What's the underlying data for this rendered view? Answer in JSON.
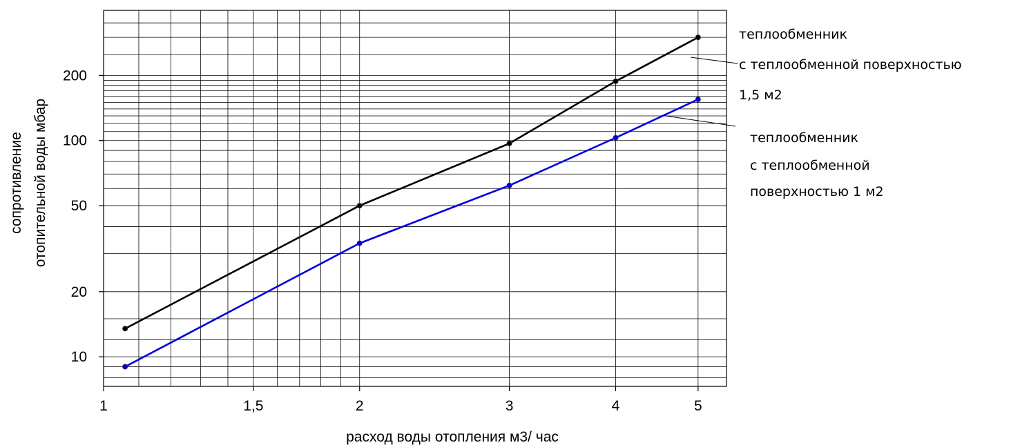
{
  "chart_data": {
    "type": "line",
    "xscale": "log",
    "yscale": "log",
    "grid": true,
    "xlim": [
      1,
      5.4
    ],
    "ylim": [
      7.3,
      400
    ],
    "xlabel": "расход воды отопления м3/ час",
    "ylabel_line1": "сопротивление",
    "ylabel_line2": "отопительной воды мбар",
    "x_ticks": [
      {
        "value": 1,
        "label": "1"
      },
      {
        "value": 1.5,
        "label": "1,5"
      },
      {
        "value": 2,
        "label": "2"
      },
      {
        "value": 3,
        "label": "3"
      },
      {
        "value": 4,
        "label": "4"
      },
      {
        "value": 5,
        "label": "5"
      }
    ],
    "y_ticks": [
      {
        "value": 10,
        "label": "10"
      },
      {
        "value": 20,
        "label": "20"
      },
      {
        "value": 50,
        "label": "50"
      },
      {
        "value": 100,
        "label": "100"
      },
      {
        "value": 200,
        "label": "200"
      }
    ],
    "series": [
      {
        "color": "#000000",
        "x": [
          1.06,
          2,
          3,
          4,
          5
        ],
        "y": [
          13.5,
          50,
          97,
          188,
          300
        ]
      },
      {
        "color": "#0000dd",
        "x": [
          1.06,
          2,
          3,
          4,
          5
        ],
        "y": [
          9,
          33.5,
          62,
          103,
          155
        ]
      }
    ],
    "annotations": [
      {
        "lines": [
          "теплообменник",
          "с теплообменной поверхностью",
          "1,5 м2"
        ],
        "series": 0
      },
      {
        "lines": [
          "теплообменник",
          "с теплообменной",
          "поверхностью 1 м2"
        ],
        "series": 1
      }
    ]
  }
}
